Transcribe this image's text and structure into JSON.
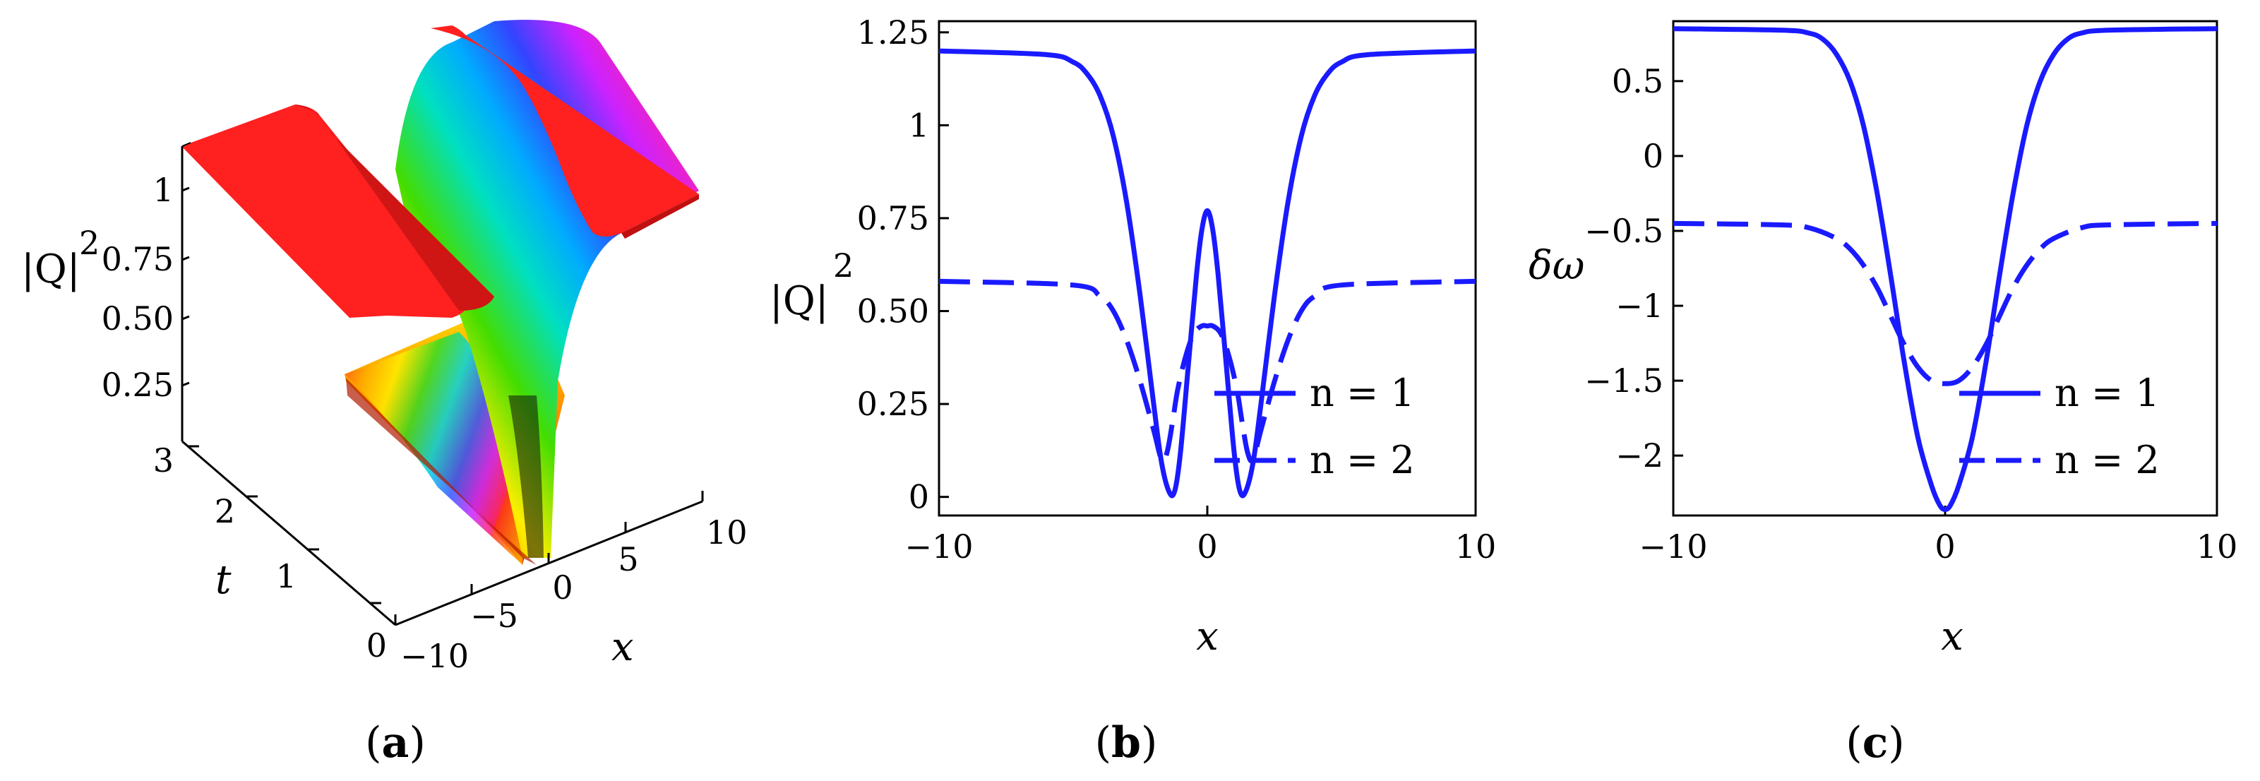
{
  "captions": {
    "a": "a",
    "b": "b",
    "c": "c"
  },
  "panel_a": {
    "z_label": "|Q|",
    "z_exp": "2",
    "t_label": "t",
    "x_label": "x",
    "z_ticks": [
      "1",
      "0.75",
      "0.50",
      "0.25"
    ],
    "t_ticks": [
      "0",
      "1",
      "2",
      "3"
    ],
    "x_ticks": [
      "−10",
      "−5",
      "0",
      "5",
      "10"
    ],
    "colors": {
      "plateau": "#ff2020",
      "gradient": [
        "#ff3020",
        "#ff9900",
        "#ffee00",
        "#44dd00",
        "#00e0c0",
        "#00aaff",
        "#3344ff",
        "#cc22ff",
        "#ff22aa",
        "#ff2020"
      ]
    }
  },
  "chart_data": [
    {
      "id": "b",
      "type": "line",
      "xlabel": "x",
      "ylabel": "|Q|",
      "ylabel_exp": "2",
      "xlim": [
        -10,
        10
      ],
      "ylim": [
        -0.05,
        1.28
      ],
      "x_ticks": [
        -10,
        0,
        10
      ],
      "x_tick_labels": [
        "−10",
        "0",
        "10"
      ],
      "y_ticks": [
        0,
        0.25,
        0.5,
        0.75,
        1,
        1.25
      ],
      "y_tick_labels": [
        "0",
        "0.25",
        "0.50",
        "0.75",
        "1",
        "1.25"
      ],
      "legend": "right",
      "color": "#1a1aff",
      "series": [
        {
          "name": "n = 1",
          "style": "solid",
          "x": [
            -10,
            -6,
            -5,
            -4.5,
            -4,
            -3.5,
            -3,
            -2.5,
            -2,
            -1.7,
            -1.4,
            -1.2,
            -1,
            -0.7,
            -0.4,
            -0.2,
            0,
            0.2,
            0.4,
            0.7,
            1,
            1.2,
            1.4,
            1.7,
            2,
            2.5,
            3,
            3.5,
            4,
            4.5,
            5,
            6,
            10
          ],
          "y": [
            1.2,
            1.19,
            1.17,
            1.14,
            1.08,
            0.97,
            0.79,
            0.54,
            0.25,
            0.09,
            0.01,
            0.02,
            0.12,
            0.36,
            0.6,
            0.72,
            0.77,
            0.72,
            0.6,
            0.36,
            0.12,
            0.02,
            0.01,
            0.09,
            0.25,
            0.54,
            0.79,
            0.97,
            1.08,
            1.14,
            1.17,
            1.19,
            1.2
          ]
        },
        {
          "name": "n = 2",
          "style": "dashed",
          "x": [
            -10,
            -5,
            -4,
            -3.5,
            -3,
            -2.5,
            -2,
            -1.7,
            -1.5,
            -1.3,
            -1.1,
            -0.8,
            -0.5,
            -0.2,
            0,
            0.2,
            0.5,
            0.8,
            1.1,
            1.3,
            1.5,
            1.7,
            2,
            2.5,
            3,
            3.5,
            4,
            5,
            10
          ],
          "y": [
            0.58,
            0.57,
            0.54,
            0.5,
            0.42,
            0.31,
            0.18,
            0.1,
            0.12,
            0.2,
            0.29,
            0.38,
            0.44,
            0.46,
            0.46,
            0.46,
            0.44,
            0.38,
            0.29,
            0.2,
            0.12,
            0.1,
            0.18,
            0.31,
            0.42,
            0.5,
            0.54,
            0.57,
            0.58
          ]
        }
      ]
    },
    {
      "id": "c",
      "type": "line",
      "xlabel": "x",
      "ylabel": "δω",
      "xlim": [
        -10,
        10
      ],
      "ylim": [
        -2.4,
        0.9
      ],
      "x_ticks": [
        -10,
        0,
        10
      ],
      "x_tick_labels": [
        "−10",
        "0",
        "10"
      ],
      "y_ticks": [
        0.5,
        0,
        -0.5,
        -1,
        -1.5,
        -2
      ],
      "y_tick_labels": [
        "0.5",
        "0",
        "−0.5",
        "−1",
        "−1.5",
        "−2"
      ],
      "legend": "right",
      "color": "#1a1aff",
      "series": [
        {
          "name": "n = 1",
          "style": "solid",
          "x": [
            -10,
            -6,
            -5,
            -4.5,
            -4,
            -3.5,
            -3,
            -2.5,
            -2,
            -1.5,
            -1,
            -0.5,
            -0.2,
            0,
            0.2,
            0.5,
            1,
            1.5,
            2,
            2.5,
            3,
            3.5,
            4,
            4.5,
            5,
            6,
            10
          ],
          "y": [
            0.85,
            0.84,
            0.82,
            0.78,
            0.68,
            0.5,
            0.2,
            -0.25,
            -0.8,
            -1.38,
            -1.88,
            -2.2,
            -2.33,
            -2.36,
            -2.33,
            -2.2,
            -1.88,
            -1.38,
            -0.8,
            -0.25,
            0.2,
            0.5,
            0.68,
            0.78,
            0.82,
            0.84,
            0.85
          ]
        },
        {
          "name": "n = 2",
          "style": "dashed",
          "x": [
            -10,
            -6,
            -5,
            -4,
            -3.5,
            -3,
            -2.5,
            -2,
            -1.5,
            -1,
            -0.5,
            0,
            0.5,
            1,
            1.5,
            2,
            2.5,
            3,
            3.5,
            4,
            5,
            6,
            10
          ],
          "y": [
            -0.45,
            -0.46,
            -0.48,
            -0.55,
            -0.62,
            -0.73,
            -0.88,
            -1.07,
            -1.26,
            -1.41,
            -1.5,
            -1.52,
            -1.5,
            -1.41,
            -1.26,
            -1.07,
            -0.88,
            -0.73,
            -0.62,
            -0.55,
            -0.48,
            -0.46,
            -0.45
          ]
        }
      ]
    }
  ]
}
